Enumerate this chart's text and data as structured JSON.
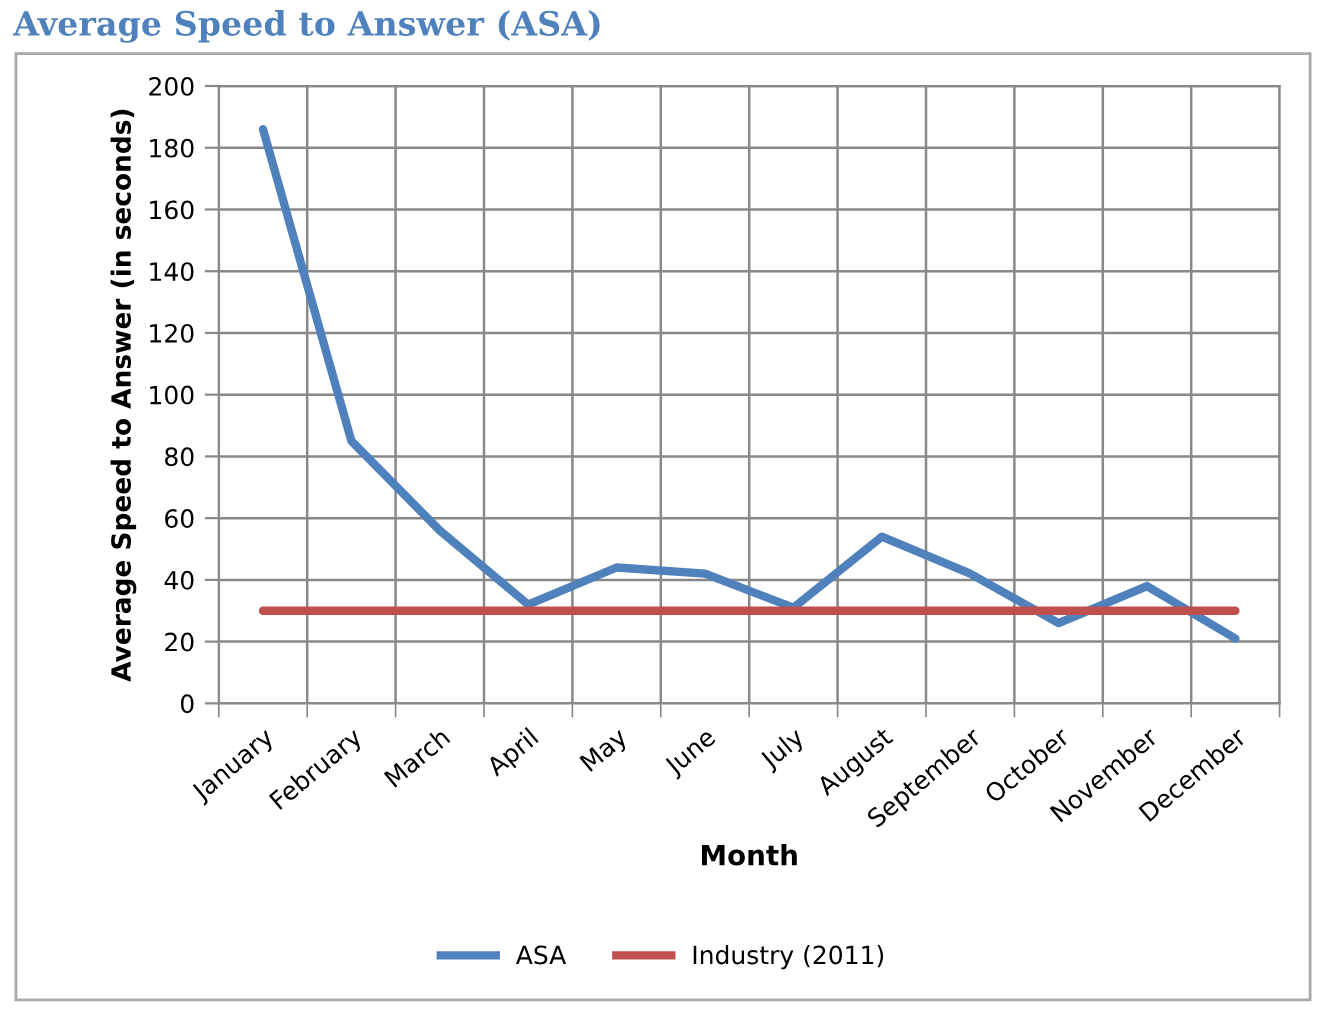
{
  "chart_data": {
    "type": "line",
    "title": "Average Speed to Answer (ASA)",
    "xlabel": "Month",
    "ylabel": "Average Speed to Answer (in seconds)",
    "categories": [
      "January",
      "February",
      "March",
      "April",
      "May",
      "June",
      "July",
      "August",
      "September",
      "October",
      "November",
      "December"
    ],
    "series": [
      {
        "name": "ASA",
        "color": "#4f81bd",
        "values": [
          186,
          85,
          56,
          32,
          44,
          42,
          31,
          54,
          42,
          26,
          38,
          21
        ]
      },
      {
        "name": "Industry (2011)",
        "color": "#c0504d",
        "values": [
          30,
          30,
          30,
          30,
          30,
          30,
          30,
          30,
          30,
          30,
          30,
          30
        ]
      }
    ],
    "ylim": [
      0,
      200
    ],
    "yticks": [
      0,
      20,
      40,
      60,
      80,
      100,
      120,
      140,
      160,
      180,
      200
    ],
    "grid": true,
    "legend": "bottom",
    "marker": "none",
    "line_style": "solid"
  }
}
